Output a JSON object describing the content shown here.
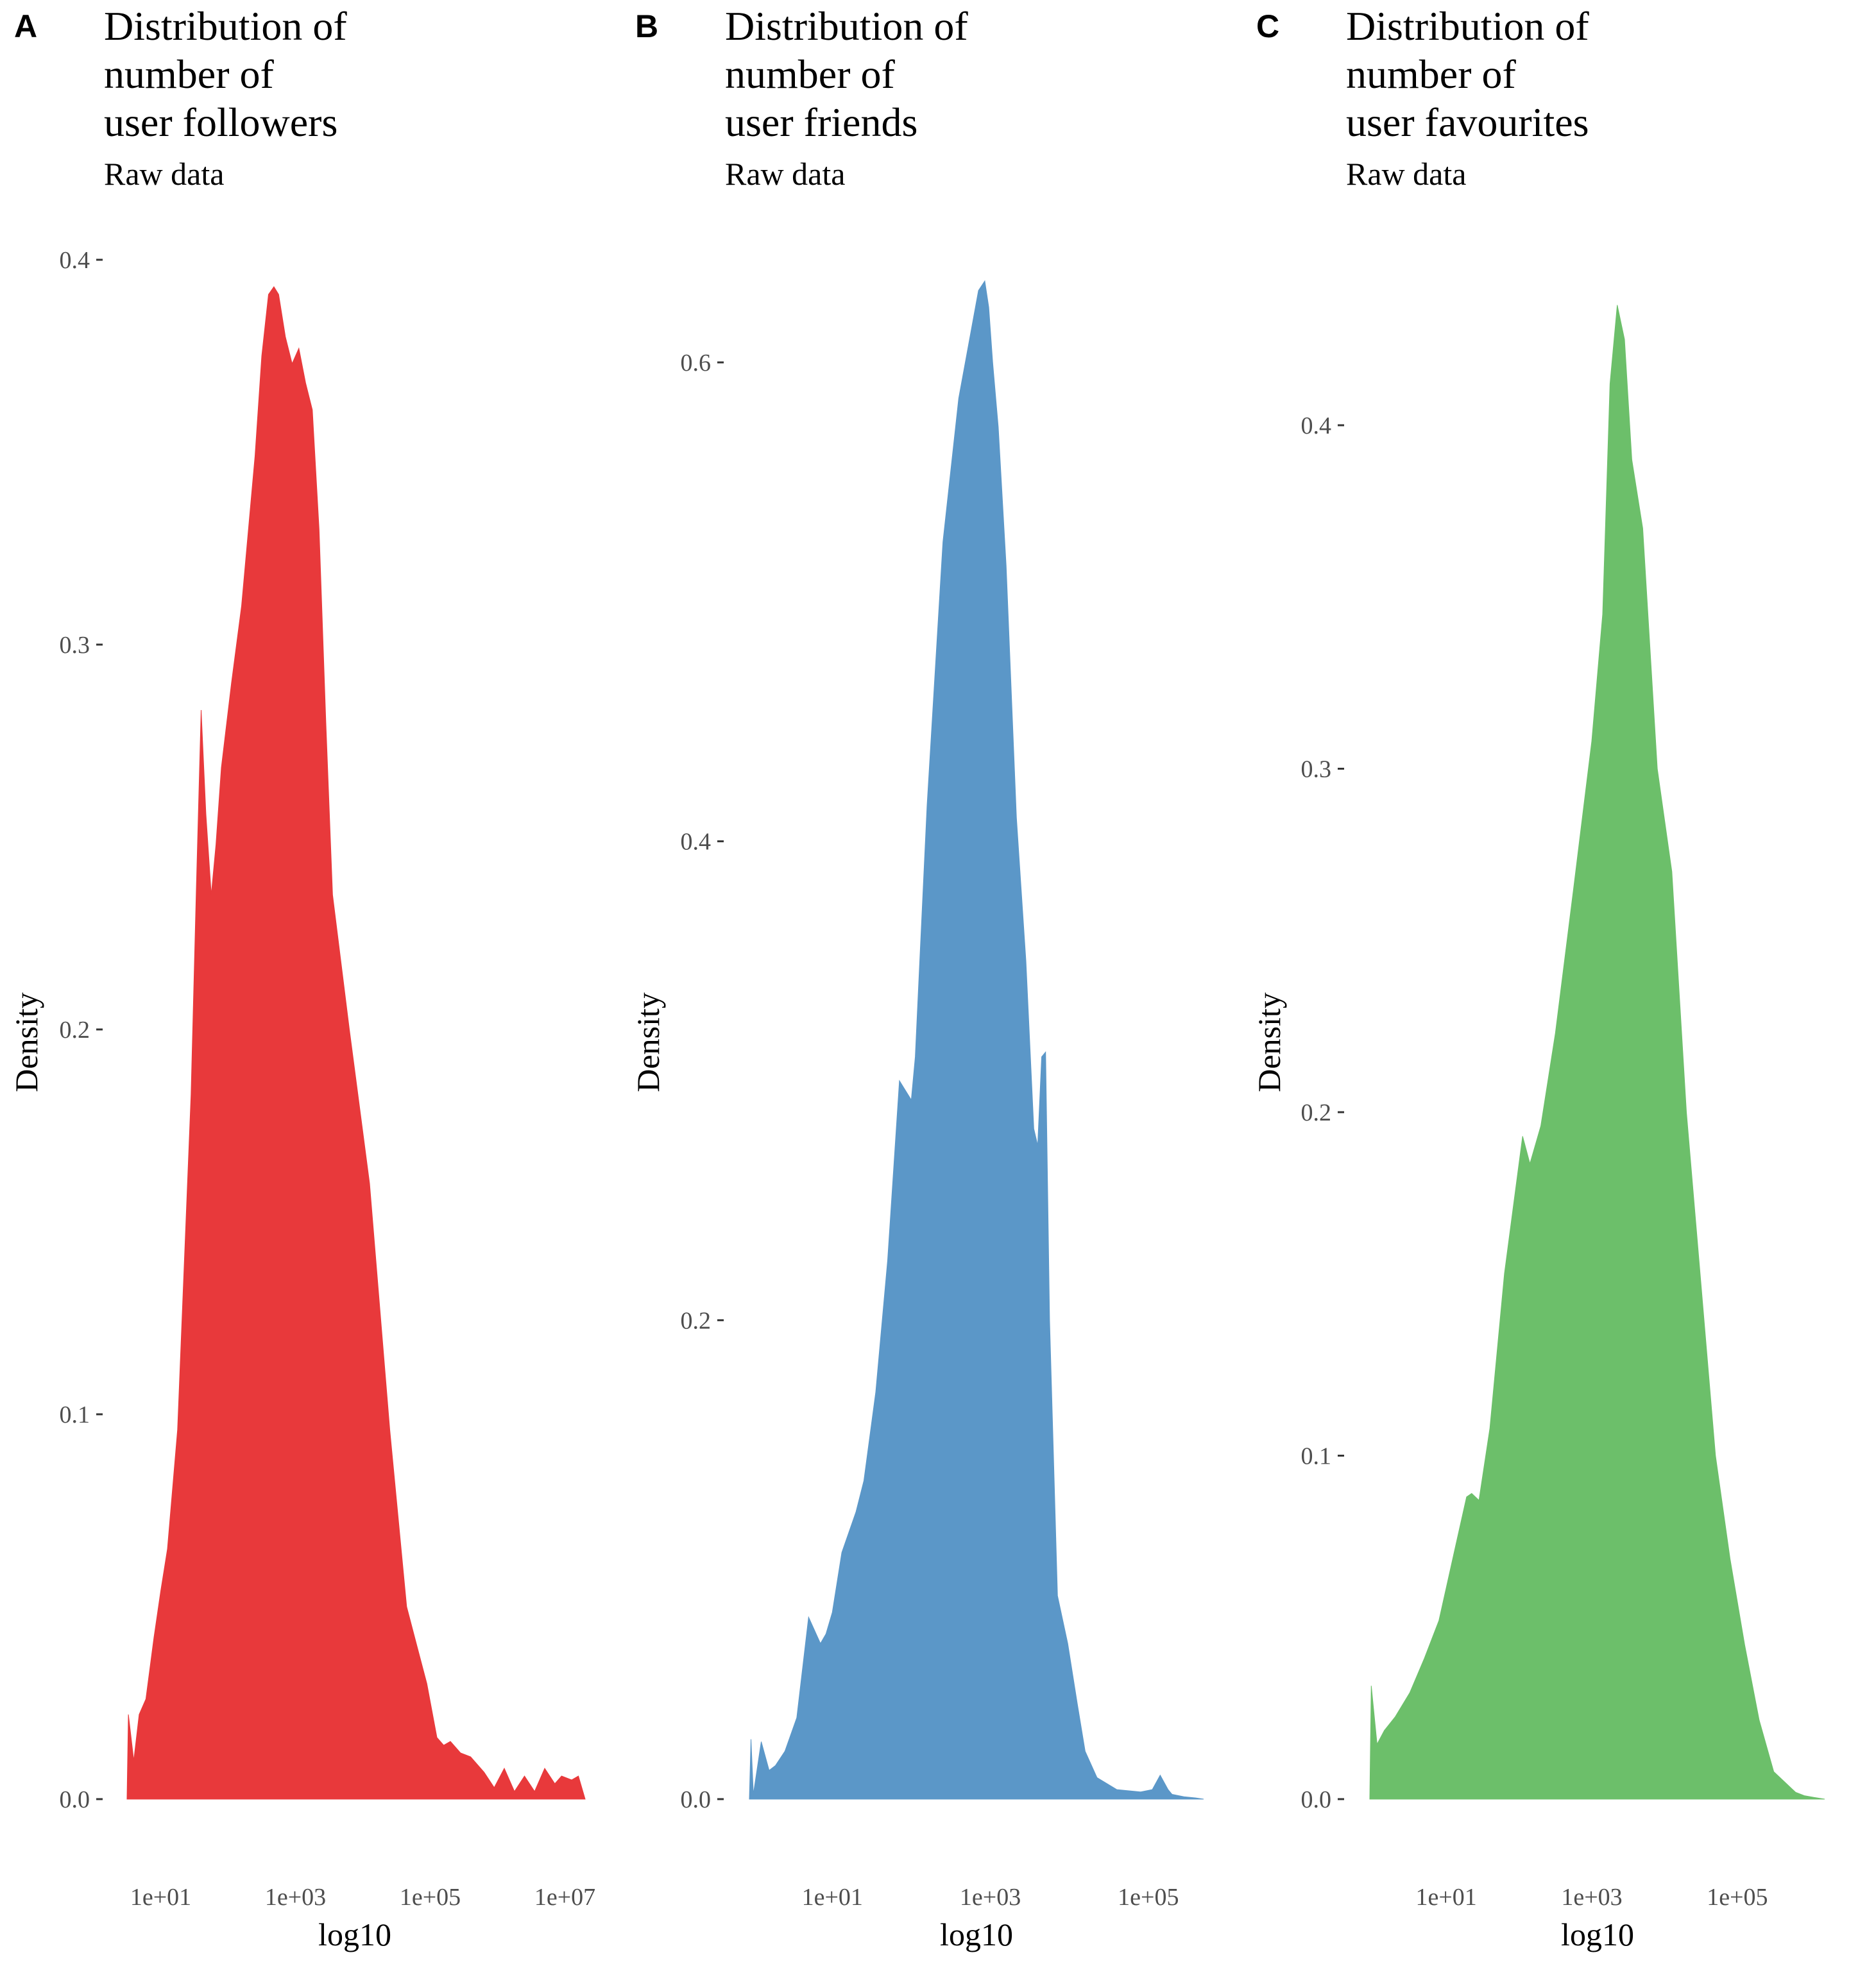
{
  "chart_data": [
    {
      "type": "area",
      "panel_label": "A",
      "title": "Distribution of number of user followers",
      "title_lines": [
        "Distribution of",
        "number of",
        "user followers"
      ],
      "subtitle": "Raw data",
      "xlabel": "log10",
      "ylabel": "Density",
      "x_scale": "log10",
      "xlim": [
        0.5,
        7.3
      ],
      "ylim": [
        0,
        0.4
      ],
      "x_ticks": [
        {
          "value": 1,
          "label": "1e+01"
        },
        {
          "value": 3,
          "label": "1e+03"
        },
        {
          "value": 5,
          "label": "1e+05"
        },
        {
          "value": 7,
          "label": "1e+07"
        }
      ],
      "y_ticks": [
        {
          "value": 0,
          "label": "0.0"
        },
        {
          "value": 0.1,
          "label": "0.1"
        },
        {
          "value": 0.2,
          "label": "0.2"
        },
        {
          "value": 0.3,
          "label": "0.3"
        },
        {
          "value": 0.4,
          "label": "0.4"
        }
      ],
      "grid": false,
      "color": "#e8393b",
      "series": [
        {
          "x": [
            0.5,
            0.52,
            0.6,
            0.68,
            0.78,
            0.9,
            1.0,
            1.1,
            1.25,
            1.45,
            1.53,
            1.6,
            1.67,
            1.75,
            1.82,
            1.9,
            2.05,
            2.2,
            2.4,
            2.5,
            2.6,
            2.68,
            2.75,
            2.85,
            2.95,
            3.05,
            3.15,
            3.25,
            3.35,
            3.45,
            3.55,
            3.8,
            4.1,
            4.4,
            4.65,
            4.8,
            4.95,
            5.1,
            5.2,
            5.3,
            5.45,
            5.6,
            5.8,
            5.95,
            6.1,
            6.25,
            6.4,
            6.55,
            6.7,
            6.85,
            6.95,
            7.1,
            7.2,
            7.3
          ],
          "y": [
            0.0,
            0.022,
            0.01,
            0.022,
            0.026,
            0.042,
            0.054,
            0.065,
            0.096,
            0.183,
            0.237,
            0.283,
            0.256,
            0.235,
            0.248,
            0.268,
            0.29,
            0.31,
            0.349,
            0.375,
            0.391,
            0.393,
            0.391,
            0.38,
            0.373,
            0.377,
            0.368,
            0.361,
            0.33,
            0.28,
            0.235,
            0.2,
            0.16,
            0.096,
            0.05,
            0.04,
            0.03,
            0.016,
            0.014,
            0.015,
            0.012,
            0.011,
            0.007,
            0.003,
            0.008,
            0.002,
            0.006,
            0.002,
            0.008,
            0.004,
            0.006,
            0.005,
            0.006,
            0.0
          ]
        }
      ]
    },
    {
      "type": "area",
      "panel_label": "B",
      "title": "Distribution of number of user friends",
      "title_lines": [
        "Distribution of",
        "number of",
        "user friends"
      ],
      "subtitle": "Raw data",
      "xlabel": "log10",
      "ylabel": "Density",
      "x_scale": "log10",
      "xlim": [
        -0.05,
        5.7
      ],
      "ylim": [
        0,
        0.6
      ],
      "x_ticks": [
        {
          "value": 1,
          "label": "1e+01"
        },
        {
          "value": 3,
          "label": "1e+03"
        },
        {
          "value": 5,
          "label": "1e+05"
        }
      ],
      "y_ticks": [
        {
          "value": 0,
          "label": "0.0"
        },
        {
          "value": 0.2,
          "label": "0.2"
        },
        {
          "value": 0.4,
          "label": "0.4"
        },
        {
          "value": 0.6,
          "label": "0.6"
        }
      ],
      "grid": false,
      "color": "#5b97c8",
      "series": [
        {
          "x": [
            -0.05,
            -0.03,
            0.0,
            0.1,
            0.2,
            0.28,
            0.4,
            0.55,
            0.7,
            0.85,
            0.92,
            1.0,
            1.12,
            1.3,
            1.4,
            1.55,
            1.7,
            1.85,
            2.0,
            2.05,
            2.1,
            2.2,
            2.4,
            2.6,
            2.75,
            2.85,
            2.93,
            2.98,
            3.03,
            3.1,
            3.2,
            3.33,
            3.45,
            3.55,
            3.6,
            3.65,
            3.7,
            3.75,
            3.85,
            3.98,
            4.1,
            4.2,
            4.35,
            4.6,
            4.9,
            5.05,
            5.15,
            5.25,
            5.3,
            5.45,
            5.6,
            5.7
          ],
          "y": [
            0.0,
            0.025,
            0.002,
            0.024,
            0.012,
            0.014,
            0.02,
            0.034,
            0.076,
            0.065,
            0.069,
            0.078,
            0.103,
            0.12,
            0.133,
            0.17,
            0.225,
            0.3,
            0.292,
            0.31,
            0.345,
            0.415,
            0.525,
            0.585,
            0.612,
            0.63,
            0.634,
            0.623,
            0.6,
            0.573,
            0.515,
            0.41,
            0.35,
            0.28,
            0.273,
            0.31,
            0.312,
            0.2,
            0.085,
            0.065,
            0.04,
            0.02,
            0.009,
            0.004,
            0.003,
            0.004,
            0.01,
            0.004,
            0.002,
            0.001,
            0.0005,
            0.0
          ]
        }
      ]
    },
    {
      "type": "area",
      "panel_label": "C",
      "title": "Distribution of number of user favourites",
      "title_lines": [
        "Distribution of",
        "number of",
        "user favourites"
      ],
      "subtitle": "Raw data",
      "xlabel": "log10",
      "ylabel": "Density",
      "x_scale": "log10",
      "xlim": [
        -0.05,
        6.2
      ],
      "ylim": [
        0,
        0.4
      ],
      "x_ticks": [
        {
          "value": 1,
          "label": "1e+01"
        },
        {
          "value": 3,
          "label": "1e+03"
        },
        {
          "value": 5,
          "label": "1e+05"
        }
      ],
      "y_ticks": [
        {
          "value": 0,
          "label": "0.0"
        },
        {
          "value": 0.1,
          "label": "0.1"
        },
        {
          "value": 0.2,
          "label": "0.2"
        },
        {
          "value": 0.3,
          "label": "0.3"
        },
        {
          "value": 0.4,
          "label": "0.4"
        }
      ],
      "grid": false,
      "color": "#6cbf6a",
      "series": [
        {
          "x": [
            -0.05,
            -0.03,
            0.05,
            0.15,
            0.3,
            0.5,
            0.7,
            0.9,
            1.1,
            1.28,
            1.35,
            1.45,
            1.6,
            1.8,
            2.05,
            2.15,
            2.3,
            2.5,
            2.75,
            3.0,
            3.15,
            3.25,
            3.35,
            3.45,
            3.55,
            3.7,
            3.9,
            4.1,
            4.3,
            4.5,
            4.7,
            4.9,
            5.1,
            5.3,
            5.5,
            5.65,
            5.8,
            5.92,
            6.05,
            6.2
          ],
          "y": [
            0.0,
            0.033,
            0.016,
            0.02,
            0.024,
            0.031,
            0.041,
            0.052,
            0.071,
            0.088,
            0.089,
            0.087,
            0.108,
            0.153,
            0.193,
            0.185,
            0.196,
            0.223,
            0.265,
            0.308,
            0.345,
            0.412,
            0.435,
            0.425,
            0.39,
            0.37,
            0.3,
            0.27,
            0.2,
            0.15,
            0.1,
            0.07,
            0.045,
            0.023,
            0.008,
            0.005,
            0.002,
            0.001,
            0.0005,
            0.0
          ]
        }
      ]
    }
  ]
}
